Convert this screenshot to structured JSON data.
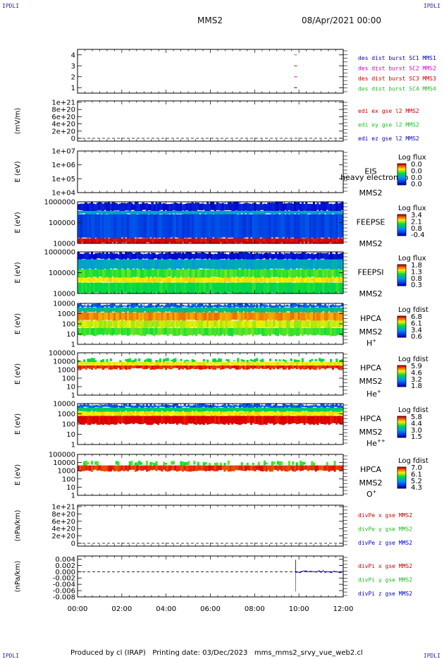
{
  "corner_label": "IPDLI",
  "header": {
    "spacecraft": "MMS2",
    "date": "08/Apr/2021 00:00"
  },
  "footer": {
    "produced_by": "Produced by cl (IRAP)",
    "printing_date": "Printing date: 03/Dec/2023",
    "file": "mms_mms2_srvy_vue_web2.cl"
  },
  "colors": {
    "blue": "#0000cc",
    "magenta": "#cc00cc",
    "red": "#cc0000",
    "green": "#22bb22"
  },
  "chart_data": [
    {
      "type": "scatter",
      "id": "des-dist",
      "yticks": [
        "1",
        "2",
        "3",
        "4"
      ],
      "ylim": [
        0.5,
        4.5
      ],
      "labels": [
        {
          "text": "des dist burst SC1 MMS1",
          "color": "#0000cc"
        },
        {
          "text": "des dist burst SC2 MMS2",
          "color": "#cc00cc"
        },
        {
          "text": "des dist burst SC3 MMS3",
          "color": "#cc0000"
        },
        {
          "text": "des dist burst SC4 MMS4",
          "color": "#22bb22"
        }
      ],
      "x": [
        9.85,
        9.85,
        9.85,
        9.85
      ],
      "y": [
        1,
        2,
        3,
        4
      ]
    },
    {
      "type": "line",
      "id": "edi-e",
      "ylabel": "(mV/m)",
      "yticks": [
        "0",
        "2e+20",
        "4e+20",
        "6e+20",
        "8e+20",
        "1e+21"
      ],
      "labels": [
        {
          "text": "edi ex gse l2 MMS2",
          "color": "#cc0000"
        },
        {
          "text": "edi ey gse l2 MMS2",
          "color": "#22bb22"
        },
        {
          "text": "edi ez gse l2 MMS2",
          "color": "#0000cc"
        }
      ]
    },
    {
      "type": "heatmap",
      "id": "eis",
      "ylabel": "E (eV)",
      "yticks": [
        "1e+04",
        "1e+05",
        "1e+06",
        "1e+07"
      ],
      "instrument": "EIS",
      "overlay": "heavy electron to",
      "sc": "MMS2",
      "cbar_title": "Log flux",
      "cbar_ticks": [
        "0.0",
        "0.0",
        "0.0",
        "0.0"
      ]
    },
    {
      "type": "heatmap",
      "id": "feepse",
      "ylabel": "E (eV)",
      "yticks": [
        "10000",
        "100000",
        "1000000"
      ],
      "instrument": "FEEPSE",
      "sc": "MMS2",
      "cbar_title": "Log flux",
      "cbar_ticks": [
        "3.4",
        "2.1",
        "0.8",
        "-0.4"
      ]
    },
    {
      "type": "heatmap",
      "id": "feepsi",
      "ylabel": "E (eV)",
      "yticks": [
        "10000",
        "100000",
        "1000000"
      ],
      "instrument": "FEEPSI",
      "sc": "MMS2",
      "cbar_title": "Log flux",
      "cbar_ticks": [
        "1.8",
        "1.3",
        "0.8",
        "0.3"
      ]
    },
    {
      "type": "heatmap",
      "id": "hpca-h",
      "ylabel": "E (eV)",
      "yticks": [
        "1",
        "10",
        "100",
        "1000",
        "10000"
      ],
      "instrument": "HPCA",
      "sc": "MMS2",
      "species": "H",
      "charge": "+",
      "cbar_title": "Log fdist",
      "cbar_ticks": [
        "6.8",
        "6.1",
        "3.4",
        "0.6"
      ]
    },
    {
      "type": "heatmap",
      "id": "hpca-he",
      "ylabel": "E (eV)",
      "yticks": [
        "1",
        "10",
        "100",
        "1000",
        "10000",
        "100000"
      ],
      "instrument": "HPCA",
      "sc": "MMS2",
      "species": "He",
      "charge": "+",
      "cbar_title": "Log fdist",
      "cbar_ticks": [
        "5.9",
        "4.6",
        "3.2",
        "1.8"
      ]
    },
    {
      "type": "heatmap",
      "id": "hpca-hepp",
      "ylabel": "E (eV)",
      "yticks": [
        "1",
        "10",
        "100",
        "1000",
        "10000"
      ],
      "instrument": "HPCA",
      "sc": "MMS2",
      "species": "He",
      "charge": "++",
      "cbar_title": "Log fdist",
      "cbar_ticks": [
        "5.8",
        "4.4",
        "3.0",
        "1.5"
      ]
    },
    {
      "type": "heatmap",
      "id": "hpca-o",
      "ylabel": "E (eV)",
      "yticks": [
        "1",
        "10",
        "100",
        "1000",
        "10000",
        "100000"
      ],
      "instrument": "HPCA",
      "sc": "MMS2",
      "species": "O",
      "charge": "+",
      "cbar_title": "Log fdist",
      "cbar_ticks": [
        "7.0",
        "6.1",
        "5.2",
        "4.3"
      ]
    },
    {
      "type": "line",
      "id": "divpe",
      "ylabel": "(nPa/km)",
      "yticks": [
        "0",
        "2e+20",
        "4e+20",
        "6e+20",
        "8e+20",
        "1e+21"
      ],
      "labels": [
        {
          "text": "divPe x gse MMS2",
          "color": "#cc0000"
        },
        {
          "text": "divPe y gse MMS2",
          "color": "#22bb22"
        },
        {
          "text": "divPe z gse MMS2",
          "color": "#0000cc"
        }
      ]
    },
    {
      "type": "line",
      "id": "divpi",
      "ylabel": "(nPa/km)",
      "yticks": [
        "-0.008",
        "-0.006",
        "-0.004",
        "-0.002",
        "0.000",
        "0.002",
        "0.004"
      ],
      "ylim": [
        -0.008,
        0.005
      ],
      "labels": [
        {
          "text": "divPi x gse MMS2",
          "color": "#cc0000"
        },
        {
          "text": "divPi y gse MMS2",
          "color": "#22bb22"
        },
        {
          "text": "divPi z gse MMS2",
          "color": "#0000cc"
        }
      ]
    }
  ],
  "xaxis": {
    "ticks": [
      "00:00",
      "02:00",
      "04:00",
      "06:00",
      "08:00",
      "10:00",
      "12:00"
    ],
    "range_hours": [
      0,
      12
    ]
  }
}
